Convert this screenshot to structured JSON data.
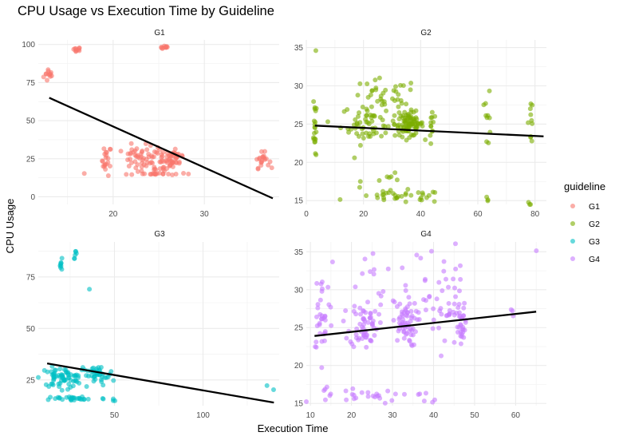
{
  "chart_data": {
    "type": "scatter",
    "title": "CPU Usage vs Execution Time by Guideline",
    "xlabel": "Execution Time",
    "ylabel": "CPU Usage",
    "legend": {
      "title": "guideline",
      "position": "right"
    },
    "grid": true,
    "series_colors": {
      "G1": "#F8766D",
      "G2": "#7CAE00",
      "G3": "#00BFC4",
      "G4": "#C77CFF"
    },
    "panels": [
      {
        "name": "G1",
        "color": "#F8766D",
        "xlim": [
          11.8,
          38.2
        ],
        "ylim": [
          -5,
          103
        ],
        "xticks": [
          20,
          30
        ],
        "yticks": [
          0,
          25,
          50,
          75,
          100
        ],
        "fit": {
          "x": [
            13,
            37.5
          ],
          "y": [
            65,
            -1
          ]
        },
        "clusters": [
          {
            "cx": 13,
            "cy": 80,
            "sx": 0.3,
            "sy": 2.5,
            "n": 12
          },
          {
            "cx": 16,
            "cy": 97,
            "sx": 0.25,
            "sy": 0.6,
            "n": 10
          },
          {
            "cx": 25.7,
            "cy": 98,
            "sx": 0.25,
            "sy": 0.5,
            "n": 10
          },
          {
            "cx": 19.3,
            "cy": 24,
            "sx": 0.25,
            "sy": 5,
            "n": 20
          },
          {
            "cx": 22.5,
            "cy": 25,
            "sx": 0.8,
            "sy": 4,
            "n": 30
          },
          {
            "cx": 25,
            "cy": 24,
            "sx": 1.2,
            "sy": 5,
            "n": 60
          },
          {
            "cx": 27,
            "cy": 26,
            "sx": 0.5,
            "sy": 3,
            "n": 20
          },
          {
            "cx": 24.5,
            "cy": 15,
            "sx": 2.2,
            "sy": 0.3,
            "n": 20
          },
          {
            "cx": 36.3,
            "cy": 24,
            "sx": 0.4,
            "sy": 2.5,
            "n": 20
          }
        ]
      },
      {
        "name": "G2",
        "color": "#7CAE00",
        "xlim": [
          0,
          84
        ],
        "ylim": [
          14.5,
          36
        ],
        "xticks": [
          0,
          20,
          40,
          60,
          80
        ],
        "yticks": [
          15,
          20,
          25,
          30,
          35
        ],
        "fit": {
          "x": [
            3,
            83
          ],
          "y": [
            24.8,
            23.4
          ]
        },
        "clusters": [
          {
            "cx": 3,
            "cy": 25,
            "sx": 0.25,
            "sy": 2.5,
            "n": 20
          },
          {
            "cx": 3,
            "cy": 34.5,
            "sx": 0.2,
            "sy": 0.1,
            "n": 1
          },
          {
            "cx": 22,
            "cy": 25,
            "sx": 5,
            "sy": 1.3,
            "n": 60
          },
          {
            "cx": 36,
            "cy": 25,
            "sx": 2.5,
            "sy": 0.8,
            "n": 90
          },
          {
            "cx": 27,
            "cy": 28.5,
            "sx": 6,
            "sy": 1.2,
            "n": 35
          },
          {
            "cx": 33,
            "cy": 15.5,
            "sx": 8,
            "sy": 0.4,
            "n": 35
          },
          {
            "cx": 30,
            "cy": 18,
            "sx": 5,
            "sy": 0.5,
            "n": 8
          },
          {
            "cx": 44,
            "cy": 25,
            "sx": 0.4,
            "sy": 1.5,
            "n": 12
          },
          {
            "cx": 63.5,
            "cy": 25.5,
            "sx": 0.5,
            "sy": 2,
            "n": 10
          },
          {
            "cx": 63.5,
            "cy": 15.8,
            "sx": 0.4,
            "sy": 0.6,
            "n": 3
          },
          {
            "cx": 78.5,
            "cy": 25.5,
            "sx": 0.4,
            "sy": 1.5,
            "n": 10
          },
          {
            "cx": 78.5,
            "cy": 15.5,
            "sx": 0.4,
            "sy": 1,
            "n": 3
          }
        ]
      },
      {
        "name": "G3",
        "color": "#00BFC4",
        "xlim": [
          7,
          143
        ],
        "ylim": [
          12.5,
          92
        ],
        "xticks": [
          50,
          100
        ],
        "yticks": [
          25,
          50,
          75
        ],
        "fit": {
          "x": [
            12,
            140
          ],
          "y": [
            33,
            14
          ]
        },
        "clusters": [
          {
            "cx": 20,
            "cy": 81,
            "sx": 0.6,
            "sy": 1.3,
            "n": 8
          },
          {
            "cx": 28,
            "cy": 86,
            "sx": 0.4,
            "sy": 1,
            "n": 6
          },
          {
            "cx": 20,
            "cy": 26,
            "sx": 6,
            "sy": 2.5,
            "n": 70
          },
          {
            "cx": 40,
            "cy": 27,
            "sx": 5,
            "sy": 2.5,
            "n": 40
          },
          {
            "cx": 28,
            "cy": 16,
            "sx": 9,
            "sy": 0.6,
            "n": 28
          },
          {
            "cx": 49,
            "cy": 15.5,
            "sx": 0.6,
            "sy": 1,
            "n": 3
          },
          {
            "cx": 36,
            "cy": 69,
            "sx": 0.2,
            "sy": 0.2,
            "n": 1
          },
          {
            "cx": 136,
            "cy": 22,
            "sx": 0.3,
            "sy": 0.3,
            "n": 1
          },
          {
            "cx": 140,
            "cy": 20,
            "sx": 0.3,
            "sy": 0.3,
            "n": 1
          }
        ]
      },
      {
        "name": "G4",
        "color": "#C77CFF",
        "xlim": [
          9,
          67.5
        ],
        "ylim": [
          14.7,
          36.3
        ],
        "xticks": [
          10,
          20,
          30,
          40,
          50,
          60
        ],
        "yticks": [
          15,
          20,
          25,
          30,
          35
        ],
        "fit": {
          "x": [
            11,
            65
          ],
          "y": [
            23.9,
            27.1
          ]
        },
        "clusters": [
          {
            "cx": 13,
            "cy": 26,
            "sx": 1.3,
            "sy": 2.2,
            "n": 30
          },
          {
            "cx": 12.5,
            "cy": 30.8,
            "sx": 0.5,
            "sy": 0.4,
            "n": 3
          },
          {
            "cx": 23,
            "cy": 25.5,
            "sx": 1.7,
            "sy": 1.6,
            "n": 60
          },
          {
            "cx": 33,
            "cy": 25.5,
            "sx": 1.5,
            "sy": 1.5,
            "n": 60
          },
          {
            "cx": 43,
            "cy": 27.5,
            "sx": 2.5,
            "sy": 2.8,
            "n": 45
          },
          {
            "cx": 47,
            "cy": 25,
            "sx": 0.6,
            "sy": 1.5,
            "n": 20
          },
          {
            "cx": 30,
            "cy": 30,
            "sx": 7,
            "sy": 2.5,
            "n": 25
          },
          {
            "cx": 28,
            "cy": 16,
            "sx": 9,
            "sy": 0.6,
            "n": 30
          },
          {
            "cx": 42,
            "cy": 34,
            "sx": 2,
            "sy": 1,
            "n": 5
          },
          {
            "cx": 13,
            "cy": 16.5,
            "sx": 0.8,
            "sy": 0.5,
            "n": 4
          },
          {
            "cx": 60,
            "cy": 27.2,
            "sx": 1,
            "sy": 0.3,
            "n": 3
          },
          {
            "cx": 65,
            "cy": 35,
            "sx": 0.1,
            "sy": 0.1,
            "n": 1
          }
        ]
      }
    ]
  }
}
